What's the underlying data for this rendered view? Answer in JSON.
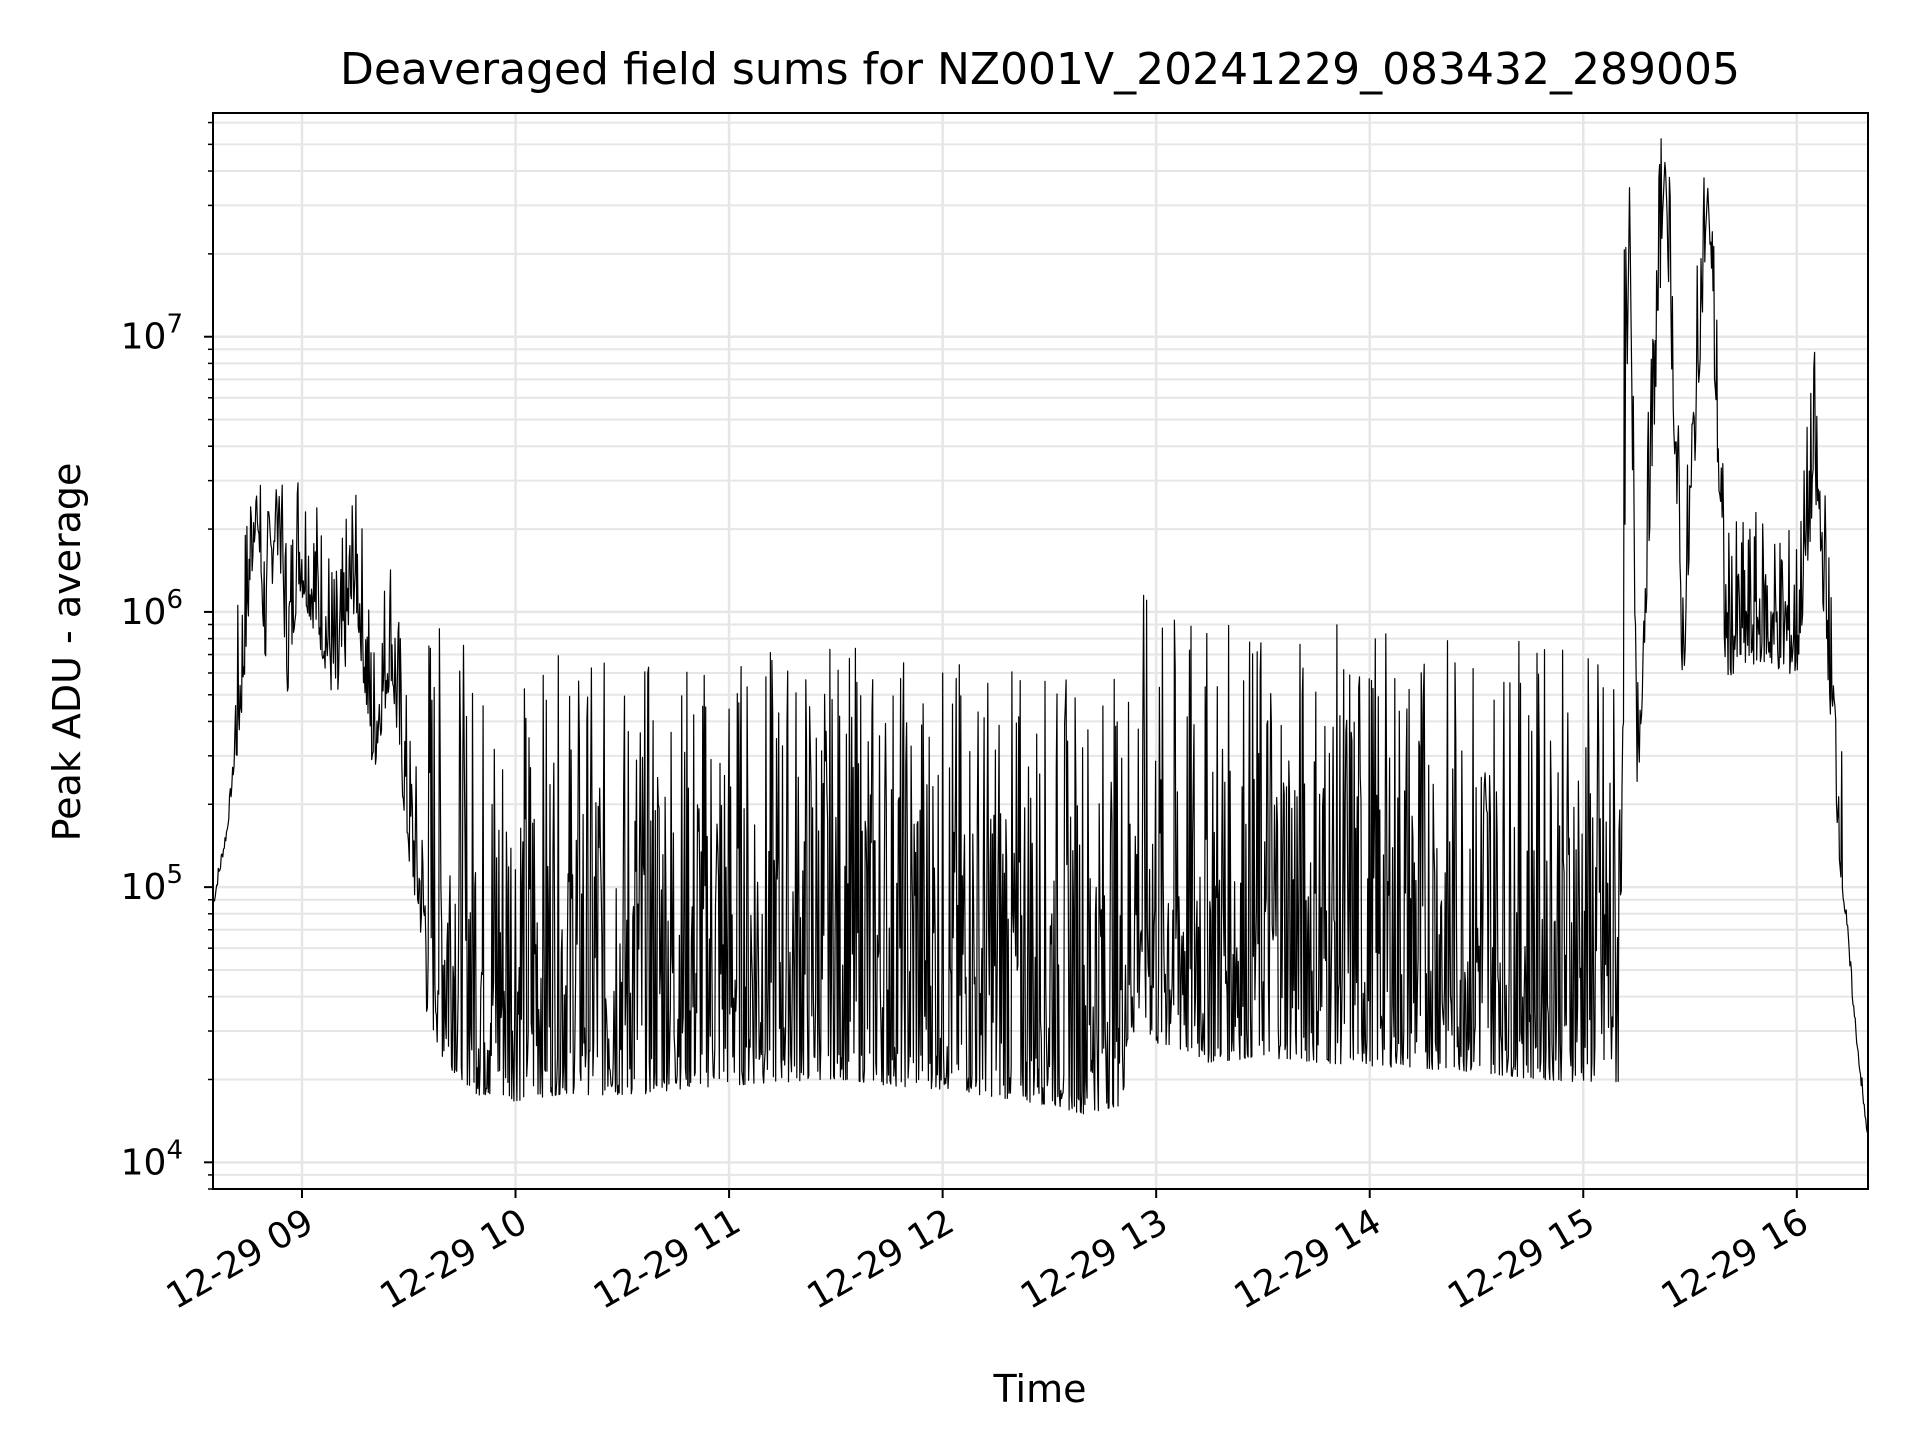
{
  "chart_data": {
    "type": "line",
    "title": "Deaveraged field sums for NZ001V_20241229_083432_289005",
    "xlabel": "Time",
    "ylabel": "Peak ADU - average",
    "x_ticks": [
      "12-29 09",
      "12-29 10",
      "12-29 11",
      "12-29 12",
      "12-29 13",
      "12-29 14",
      "12-29 15",
      "12-29 16"
    ],
    "x_range": [
      "2024-12-29 08:35",
      "2024-12-29 16:20"
    ],
    "y_scale": "log",
    "ylim": [
      8000,
      65000000
    ],
    "y_ticks": [
      {
        "value": 10000,
        "base": "10",
        "exp": "4"
      },
      {
        "value": 100000,
        "base": "10",
        "exp": "5"
      },
      {
        "value": 1000000,
        "base": "10",
        "exp": "6"
      },
      {
        "value": 10000000,
        "base": "10",
        "exp": "7"
      }
    ],
    "grid": true,
    "series": [
      {
        "color": "#000000",
        "points": [
          [
            "08:35",
            85000
          ],
          [
            "08:39",
            160000
          ],
          [
            "08:43",
            500000
          ],
          [
            "08:47",
            2500000
          ],
          [
            "08:50",
            700000
          ],
          [
            "08:53",
            2800000
          ],
          [
            "08:56",
            600000
          ],
          [
            "08:59",
            1500000
          ],
          [
            "09:05",
            900000
          ],
          [
            "09:10",
            500000
          ],
          [
            "09:15",
            1300000
          ],
          [
            "09:20",
            300000
          ],
          [
            "09:25",
            700000
          ],
          [
            "09:30",
            150000
          ],
          [
            "09:35",
            60000
          ],
          [
            "09:40",
            40000
          ],
          [
            "09:50",
            30000
          ],
          [
            "10:00",
            29000
          ],
          [
            "10:15",
            31000
          ],
          [
            "10:30",
            30000
          ],
          [
            "10:45",
            32000
          ],
          [
            "11:00",
            33000
          ],
          [
            "11:15",
            34000
          ],
          [
            "11:30",
            35000
          ],
          [
            "11:45",
            33000
          ],
          [
            "12:00",
            32000
          ],
          [
            "12:15",
            30000
          ],
          [
            "12:30",
            28000
          ],
          [
            "12:40",
            26000
          ],
          [
            "12:50",
            28000
          ],
          [
            "12:55",
            60000
          ],
          [
            "13:00",
            45000
          ],
          [
            "13:15",
            40000
          ],
          [
            "13:30",
            42000
          ],
          [
            "13:45",
            40000
          ],
          [
            "14:00",
            39000
          ],
          [
            "14:15",
            38000
          ],
          [
            "14:30",
            37000
          ],
          [
            "14:45",
            35000
          ],
          [
            "15:00",
            34000
          ],
          [
            "15:10",
            33000
          ],
          [
            "15:13",
            35000000
          ],
          [
            "15:15",
            200000
          ],
          [
            "15:23",
            45000000
          ],
          [
            "15:28",
            600000
          ],
          [
            "15:35",
            35000000
          ],
          [
            "15:40",
            700000
          ],
          [
            "15:50",
            800000
          ],
          [
            "16:00",
            700000
          ],
          [
            "16:05",
            3200000
          ],
          [
            "16:08",
            1000000
          ],
          [
            "16:12",
            150000
          ],
          [
            "16:16",
            35000
          ],
          [
            "16:19",
            15000
          ],
          [
            "16:20",
            12500
          ]
        ]
      }
    ]
  }
}
